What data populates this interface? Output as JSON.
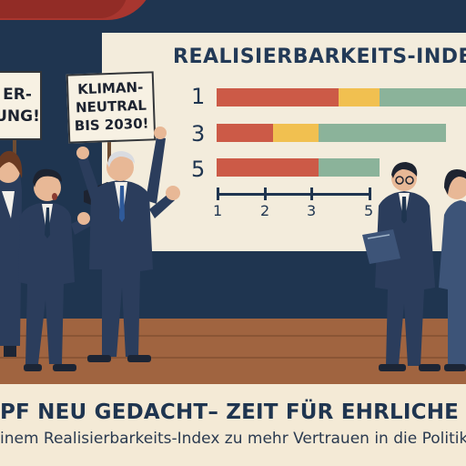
{
  "chart_data": {
    "type": "bar",
    "title": "REALISIERBARKEITS-INDEX",
    "categories": [
      "1",
      "3",
      "5"
    ],
    "xticks": [
      "1",
      "2",
      "3",
      "5"
    ],
    "series": [
      {
        "color": "#cc5a47",
        "values": [
          2.4,
          1.1,
          2.0
        ]
      },
      {
        "color": "#f1c050",
        "values": [
          0.8,
          0.9,
          0
        ]
      },
      {
        "color": "#8bb39a",
        "values": [
          1.8,
          2.5,
          1.2
        ]
      }
    ],
    "axis_label_1": "1",
    "axis_label_2": "2",
    "axis_label_3": "3",
    "axis_label_5": "5",
    "row_label_1": "1",
    "row_label_3": "3",
    "row_label_5": "5"
  },
  "signs": {
    "left_line1": "ER-",
    "left_line2": "UNG!",
    "center_line1": "KLIMAN-",
    "center_line2": "NEUTRAL",
    "center_line3": "BIS 2030!"
  },
  "caption": {
    "headline": "PF NEU GEDACHT– ZEIT FÜR EHRLICHE VERSPRE",
    "subline": "inem Realisierbarkeits-Index zu mehr Vertrauen in die Politik."
  },
  "colors": {
    "navy": "#1f3550",
    "suit": "#2b3d5c",
    "curtain": "#a8362f",
    "floor": "#a06440"
  }
}
